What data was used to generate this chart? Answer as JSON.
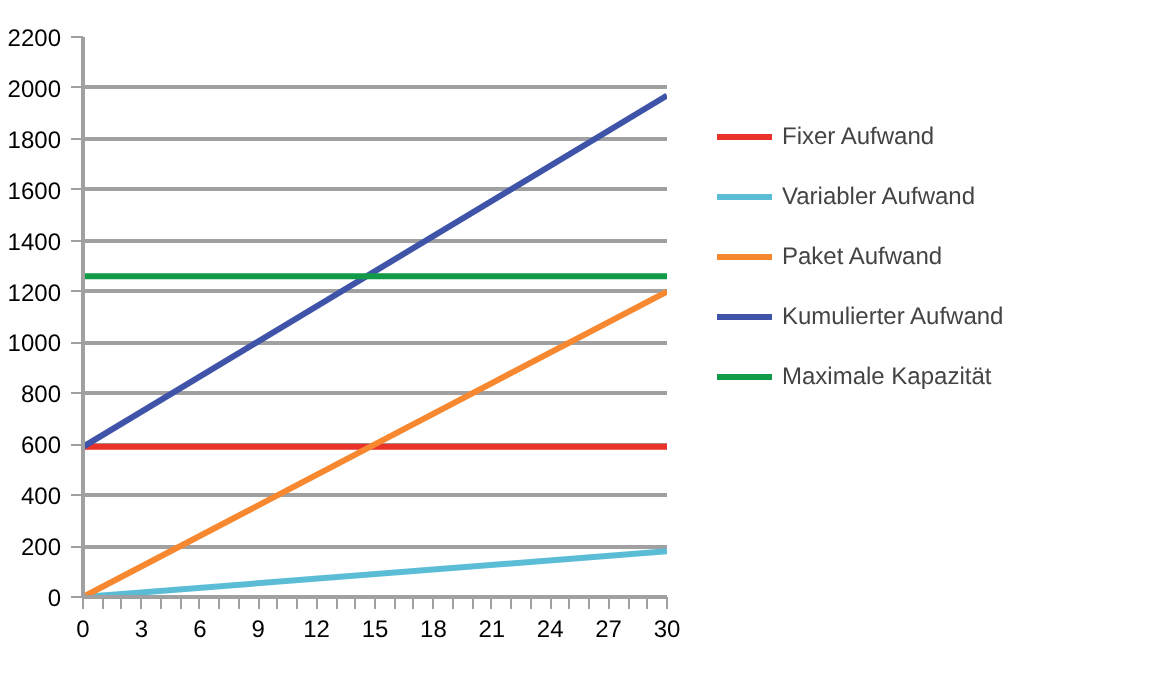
{
  "chart_data": {
    "type": "line",
    "x": [
      0,
      30
    ],
    "series": [
      {
        "name": "Fixer Aufwand",
        "color": "#e8322a",
        "values": [
          590,
          590
        ]
      },
      {
        "name": "Variabler Aufwand",
        "color": "#5bbcd6",
        "values": [
          0,
          180
        ]
      },
      {
        "name": "Paket Aufwand",
        "color": "#f7882f",
        "values": [
          0,
          1200
        ]
      },
      {
        "name": "Kumulierter Aufwand",
        "color": "#3f54a8",
        "values": [
          590,
          1970
        ]
      },
      {
        "name": "Maximale Kapazität",
        "color": "#119a48",
        "values": [
          1260,
          1260
        ]
      }
    ],
    "xlim": [
      0,
      30
    ],
    "xticks": [
      0,
      3,
      6,
      9,
      12,
      15,
      18,
      21,
      24,
      27,
      30
    ],
    "ylim": [
      0,
      2200
    ],
    "yticks": [
      0,
      200,
      400,
      600,
      800,
      1000,
      1200,
      1400,
      1600,
      1800,
      2000,
      2200
    ],
    "grid": "y",
    "legend": "right",
    "marker": "none",
    "line_style": "solid"
  }
}
